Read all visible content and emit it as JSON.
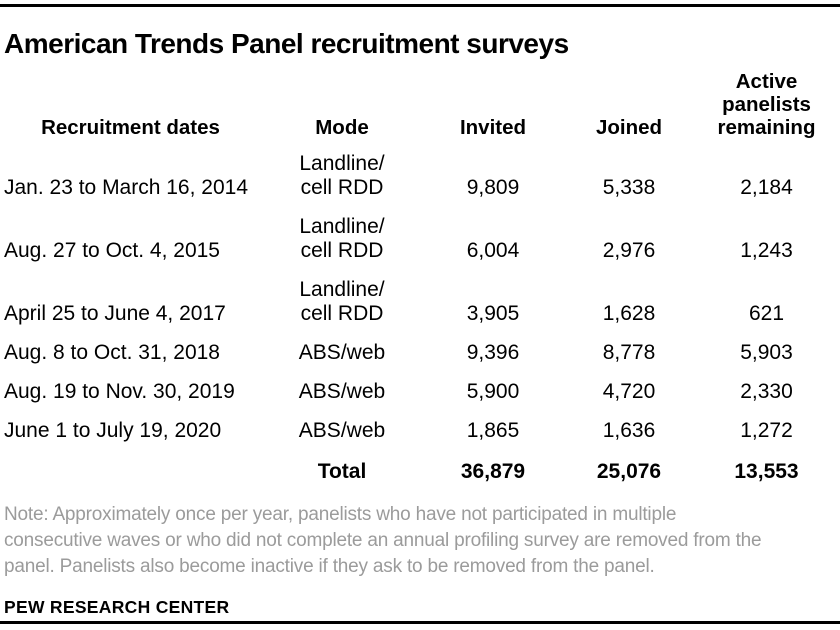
{
  "title": "American Trends Panel recruitment surveys",
  "colors": {
    "text": "#000000",
    "note_text": "#9b9b9b",
    "rule": "#000000",
    "background": "#ffffff"
  },
  "chart_data": {
    "type": "table",
    "title": "American Trends Panel recruitment surveys",
    "columns": [
      "Recruitment dates",
      "Mode",
      "Invited",
      "Joined",
      "Active\npanelists\nremaining"
    ],
    "rows": [
      {
        "dates": "Jan. 23 to March 16, 2014",
        "mode": "Landline/\ncell RDD",
        "invited": "9,809",
        "joined": "5,338",
        "active_remaining": "2,184"
      },
      {
        "dates": "Aug. 27 to Oct. 4, 2015",
        "mode": "Landline/\ncell RDD",
        "invited": "6,004",
        "joined": "2,976",
        "active_remaining": "1,243"
      },
      {
        "dates": "April 25 to June 4, 2017",
        "mode": "Landline/\ncell RDD",
        "invited": "3,905",
        "joined": "1,628",
        "active_remaining": "621"
      },
      {
        "dates": "Aug. 8 to Oct. 31, 2018",
        "mode": "ABS/web",
        "invited": "9,396",
        "joined": "8,778",
        "active_remaining": "5,903"
      },
      {
        "dates": "Aug. 19 to Nov. 30, 2019",
        "mode": "ABS/web",
        "invited": "5,900",
        "joined": "4,720",
        "active_remaining": "2,330"
      },
      {
        "dates": "June 1 to July 19, 2020",
        "mode": "ABS/web",
        "invited": "1,865",
        "joined": "1,636",
        "active_remaining": "1,272"
      }
    ],
    "total": {
      "label": "Total",
      "invited": "36,879",
      "joined": "25,076",
      "active_remaining": "13,553"
    }
  },
  "note": "Note: Approximately once per year, panelists who have not participated in multiple\nconsecutive waves or who did not complete an annual profiling survey are removed from the\npanel. Panelists also become inactive if they ask to be removed from the panel.",
  "source": "PEW RESEARCH CENTER"
}
